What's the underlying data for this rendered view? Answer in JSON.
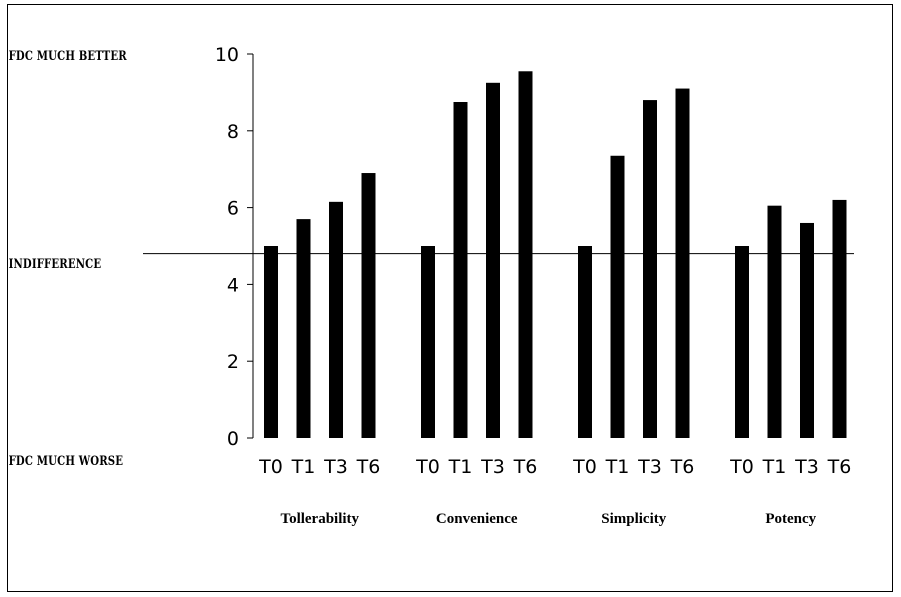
{
  "chart_data": {
    "type": "bar",
    "title": "",
    "xlabel": "",
    "ylabel": "",
    "ylim": [
      0,
      10
    ],
    "yticks": [
      0,
      2,
      4,
      6,
      8,
      10
    ],
    "grid": false,
    "reference_line": {
      "value": 4.8,
      "label": "INDIFFERENCE"
    },
    "y_annotations": {
      "top": "FDC MUCH BETTER",
      "bottom": "FDC MUCH WORSE"
    },
    "categories": [
      "Tollerability",
      "Convenience",
      "Simplicity",
      "Potency"
    ],
    "timepoints": [
      "T0",
      "T1",
      "T3",
      "T6"
    ],
    "series": [
      {
        "values": [
          5.0,
          5.7,
          6.15,
          6.9
        ]
      },
      {
        "values": [
          5.0,
          8.75,
          9.25,
          9.55
        ]
      },
      {
        "values": [
          5.0,
          7.35,
          8.8,
          9.1
        ]
      },
      {
        "values": [
          5.0,
          6.05,
          5.6,
          6.2
        ]
      }
    ],
    "bar_color": "#000000"
  }
}
